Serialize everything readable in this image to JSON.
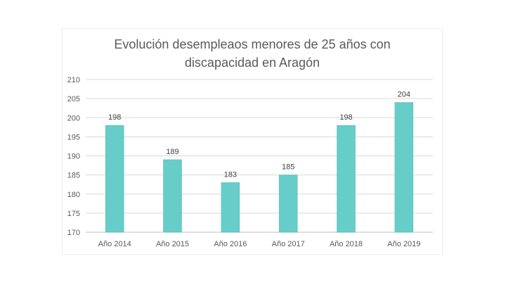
{
  "chart_data": {
    "type": "bar",
    "title_lines": [
      "Evolución desempleaos menores de 25 años con",
      "discapacidad en Aragón"
    ],
    "categories": [
      "Año 2014",
      "Año 2015",
      "Año 2016",
      "Año 2017",
      "Año 2018",
      "Año 2019"
    ],
    "values": [
      198,
      189,
      183,
      185,
      198,
      204
    ],
    "data_labels": [
      "198",
      "189",
      "183",
      "185",
      "198",
      "204"
    ],
    "ylim": [
      170,
      210
    ],
    "yticks": [
      170,
      175,
      180,
      185,
      190,
      195,
      200,
      205,
      210
    ],
    "ytick_labels": [
      "170",
      "175",
      "180",
      "185",
      "190",
      "195",
      "200",
      "205",
      "210"
    ],
    "grid": true,
    "legend": "none",
    "colors": {
      "bar": "#66cdc9",
      "bar_edge": "#4fb8b4",
      "grid": "#d9d9d9",
      "text": "#595959"
    }
  }
}
